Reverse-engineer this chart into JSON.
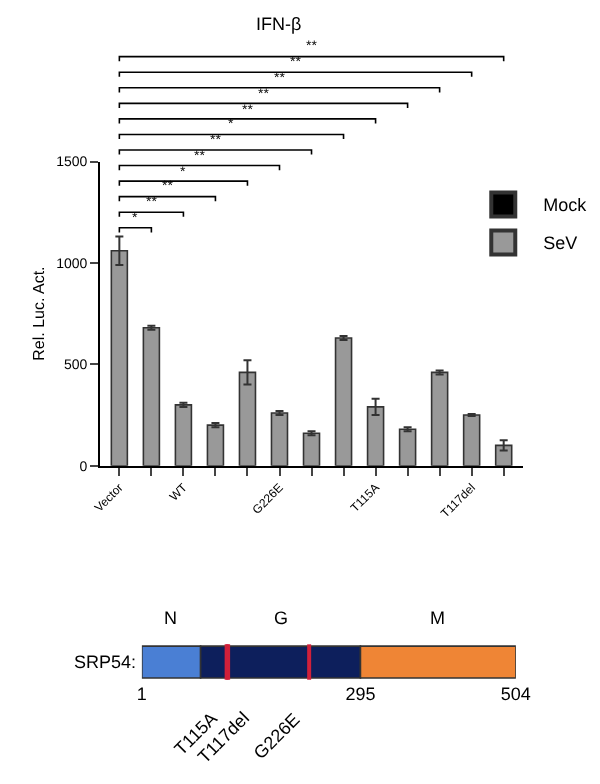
{
  "chart_data": [
    {
      "type": "bar",
      "title": "IFN-β",
      "ylabel": "Rel. Luc. Act.",
      "categories": [
        "Vector",
        null,
        "WT",
        null,
        null,
        "G226E",
        null,
        null,
        "T115A",
        null,
        null,
        "T117del",
        null
      ],
      "series": [
        {
          "name": "Mock",
          "color": "#000000",
          "values": [
            null,
            null,
            null,
            null,
            null,
            null,
            null,
            null,
            null,
            null,
            null,
            null,
            null
          ]
        },
        {
          "name": "SeV",
          "color": "#999999",
          "values": [
            1060,
            680,
            300,
            200,
            460,
            260,
            160,
            630,
            290,
            180,
            460,
            250,
            100
          ],
          "errors": [
            70,
            10,
            10,
            10,
            60,
            10,
            10,
            10,
            40,
            10,
            10,
            5,
            25
          ]
        }
      ],
      "ylim": [
        0,
        1500
      ],
      "yticks": [
        0,
        500,
        1000,
        1500
      ],
      "legend": "right",
      "annotations": [
        "*",
        "**",
        "**",
        "*",
        "**",
        "**",
        "*",
        "**",
        "**",
        "**",
        "**",
        "**"
      ]
    },
    {
      "type": "bar",
      "orientation": "horizontal",
      "ylabel": "SRP54:",
      "categories": [
        null
      ],
      "series": [
        {
          "name": "N",
          "color": "#4a7fd4",
          "values": [
            79
          ],
          "base": [
            1
          ]
        },
        {
          "name": "G",
          "color": "#0d1f5c",
          "values": [
            215
          ],
          "base": [
            80
          ]
        },
        {
          "name": "M",
          "color": "#ef8535",
          "values": [
            209
          ],
          "base": [
            295
          ]
        }
      ],
      "xlim": [
        1,
        504
      ],
      "xticks": [
        1,
        295,
        504
      ],
      "ref_lines": [
        {
          "axis": "x",
          "value": 115,
          "label": "T115A",
          "color": "#d0203a"
        },
        {
          "axis": "x",
          "value": 117,
          "label": "T117del",
          "color": "#d0203a"
        },
        {
          "axis": "x",
          "value": 226,
          "label": "G226E",
          "color": "#d0203a"
        }
      ]
    }
  ]
}
